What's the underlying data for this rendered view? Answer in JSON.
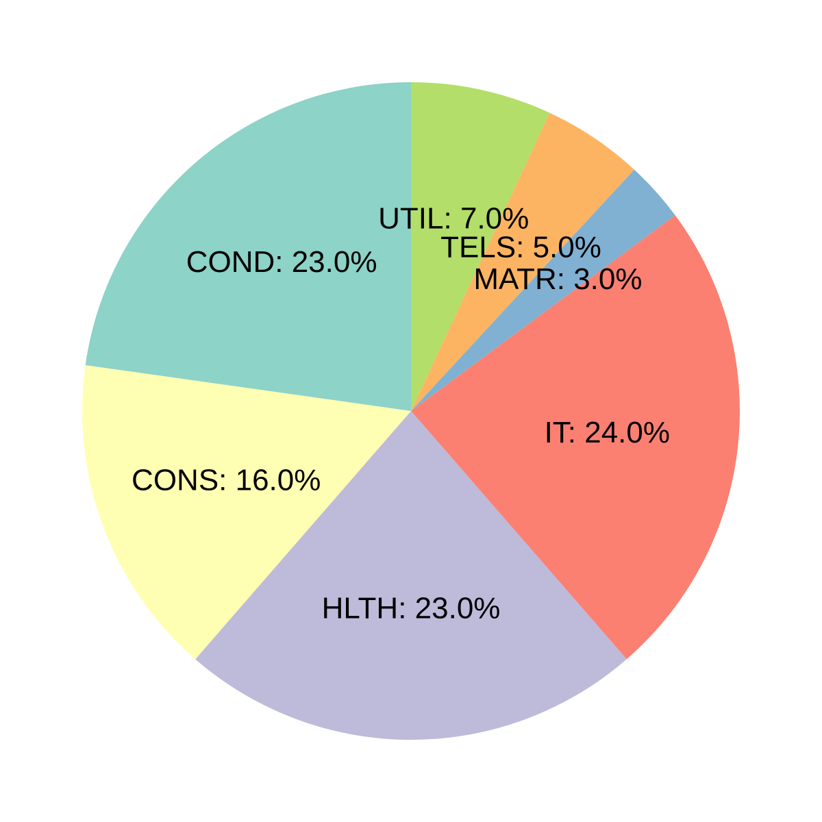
{
  "chart_data": {
    "type": "pie",
    "title": "",
    "start_angle_deg": 90,
    "direction": "clockwise",
    "slices": [
      {
        "label": "UTIL",
        "value": 7.0,
        "display": "UTIL: 7.0%",
        "color": "#b3de69"
      },
      {
        "label": "TELS",
        "value": 5.0,
        "display": "TELS: 5.0%",
        "color": "#fdb462"
      },
      {
        "label": "MATR",
        "value": 3.0,
        "display": "MATR: 3.0%",
        "color": "#80b1d3"
      },
      {
        "label": "IT",
        "value": 24.0,
        "display": "IT: 24.0%",
        "color": "#fb8072"
      },
      {
        "label": "HLTH",
        "value": 23.0,
        "display": "HLTH: 23.0%",
        "color": "#bebada"
      },
      {
        "label": "CONS",
        "value": 16.0,
        "display": "CONS: 16.0%",
        "color": "#ffffb3"
      },
      {
        "label": "COND",
        "value": 23.0,
        "display": "COND: 23.0%",
        "color": "#8dd3c7"
      }
    ]
  }
}
